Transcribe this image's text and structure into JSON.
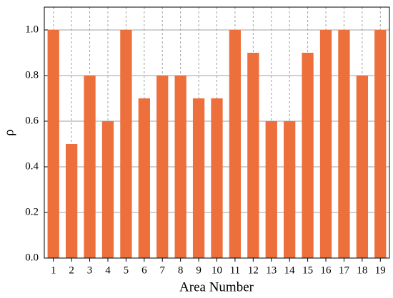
{
  "chart_data": {
    "type": "bar",
    "x_label": "Area Number",
    "y_label": "ρ",
    "categories": [
      "1",
      "2",
      "3",
      "4",
      "5",
      "6",
      "7",
      "8",
      "9",
      "10",
      "11",
      "12",
      "13",
      "14",
      "15",
      "16",
      "17",
      "18",
      "19"
    ],
    "values": [
      1.0,
      0.5,
      0.8,
      0.6,
      1.0,
      0.7,
      0.8,
      0.8,
      0.7,
      0.7,
      1.0,
      0.9,
      0.6,
      0.6,
      0.9,
      1.0,
      1.0,
      0.8,
      1.0
    ],
    "color": "#ec6f3c",
    "ylim": [
      0,
      1.1
    ],
    "yticks": [
      {
        "value": 0,
        "label": "0.0"
      },
      {
        "value": 0.2,
        "label": "0.2"
      },
      {
        "value": 0.4,
        "label": "0.4"
      },
      {
        "value": 0.6,
        "label": "0.6"
      },
      {
        "value": 0.8,
        "label": "0.8"
      },
      {
        "value": 1,
        "label": "1.0"
      }
    ],
    "grid": true
  }
}
